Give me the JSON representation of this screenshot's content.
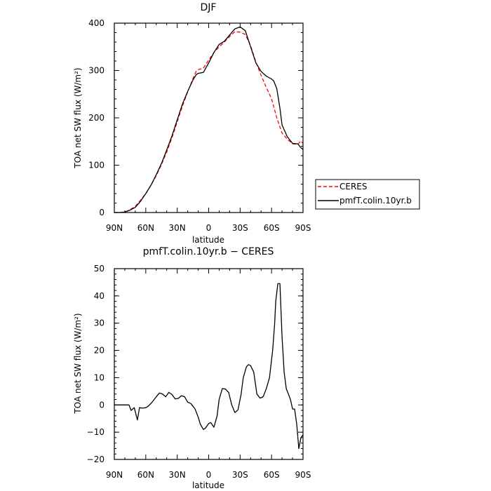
{
  "chart_data": [
    {
      "type": "line",
      "title": "DJF",
      "xlabel": "latitude",
      "ylabel": "TOA net SW flux (W/m²)",
      "xlim": [
        90,
        -90
      ],
      "ylim": [
        0,
        400
      ],
      "x_ticks": [
        90,
        60,
        30,
        0,
        -30,
        -60,
        -90
      ],
      "x_tick_labels": [
        "90N",
        "60N",
        "30N",
        "0",
        "30S",
        "60S",
        "90S"
      ],
      "y_ticks": [
        0,
        100,
        200,
        300,
        400
      ],
      "y_tick_labels": [
        "0",
        "100",
        "200",
        "300",
        "400"
      ],
      "legend_position": "right",
      "series": [
        {
          "name": "CERES",
          "color": "#ff0000",
          "dash": "dashed",
          "x": [
            90,
            85,
            80,
            75,
            70,
            65,
            60,
            55,
            50,
            45,
            40,
            35,
            30,
            25,
            20,
            15,
            12,
            10,
            5,
            0,
            -5,
            -10,
            -15,
            -20,
            -25,
            -30,
            -35,
            -40,
            -45,
            -50,
            -55,
            -60,
            -65,
            -70,
            -75,
            -80,
            -85,
            -88,
            -90
          ],
          "y": [
            0,
            0,
            1,
            6,
            13,
            26,
            40,
            58,
            78,
            102,
            128,
            158,
            192,
            225,
            255,
            283,
            298,
            302,
            305,
            322,
            338,
            350,
            360,
            372,
            382,
            381,
            376,
            352,
            318,
            290,
            264,
            240,
            200,
            168,
            155,
            145,
            144,
            151,
            146
          ]
        },
        {
          "name": "pmfT.colin.10yr.b",
          "color": "#000000",
          "dash": "solid",
          "x": [
            90,
            85,
            80,
            75,
            70,
            65,
            60,
            55,
            50,
            45,
            40,
            35,
            30,
            25,
            20,
            15,
            12,
            10,
            5,
            0,
            -5,
            -10,
            -15,
            -20,
            -25,
            -30,
            -35,
            -40,
            -45,
            -50,
            -55,
            -60,
            -62,
            -65,
            -68,
            -70,
            -75,
            -80,
            -85,
            -88,
            -90
          ],
          "y": [
            0,
            0,
            1,
            5,
            11,
            24,
            40,
            58,
            80,
            104,
            132,
            162,
            196,
            229,
            256,
            280,
            291,
            294,
            296,
            316,
            338,
            355,
            362,
            375,
            388,
            392,
            384,
            350,
            316,
            298,
            288,
            282,
            278,
            262,
            220,
            185,
            160,
            146,
            145,
            137,
            133
          ]
        }
      ]
    },
    {
      "type": "line",
      "title": "pmfT.colin.10yr.b − CERES",
      "xlabel": "latitude",
      "ylabel": "TOA net SW flux (W/m²)",
      "xlim": [
        90,
        -90
      ],
      "ylim": [
        -20,
        50
      ],
      "x_ticks": [
        90,
        60,
        30,
        0,
        -30,
        -60,
        -90
      ],
      "x_tick_labels": [
        "90N",
        "60N",
        "30N",
        "0",
        "30S",
        "60S",
        "90S"
      ],
      "y_ticks": [
        -20,
        -10,
        0,
        10,
        20,
        30,
        40,
        50
      ],
      "y_tick_labels": [
        "−20",
        "−10",
        "0",
        "10",
        "20",
        "30",
        "40",
        "50"
      ],
      "series": [
        {
          "color": "#000000",
          "dash": "solid",
          "x": [
            90,
            85,
            80,
            76,
            74,
            71,
            68,
            66,
            63,
            60,
            58,
            54,
            50,
            47,
            44,
            41,
            38,
            35,
            32,
            29,
            26,
            23,
            20,
            17,
            13,
            10,
            8,
            5,
            3,
            0,
            -2,
            -5,
            -8,
            -10,
            -13,
            -16,
            -19,
            -22,
            -25,
            -28,
            -31,
            -33,
            -36,
            -38,
            -40,
            -43,
            -46,
            -49,
            -52,
            -55,
            -58,
            -61,
            -63,
            -64,
            -66,
            -68,
            -70,
            -72,
            -74,
            -76,
            -78,
            -80,
            -82,
            -84,
            -86,
            -88,
            -90
          ],
          "y": [
            0,
            0,
            0,
            0,
            -2,
            -1,
            -5.5,
            -1,
            -1.2,
            -1,
            -0.6,
            1,
            3,
            4.4,
            4,
            3,
            4.6,
            3.8,
            2.2,
            2.4,
            3.4,
            3,
            1,
            0.5,
            -1.5,
            -4.5,
            -7,
            -9,
            -8.5,
            -6.8,
            -6.5,
            -8.2,
            -4,
            2,
            6,
            5.8,
            4.6,
            0,
            -2.8,
            -1.8,
            4,
            10,
            14,
            14.8,
            14.4,
            12,
            4,
            2.5,
            3,
            6,
            10,
            20,
            30,
            38,
            44.5,
            44.5,
            25,
            12,
            6,
            4,
            2,
            -1.5,
            -1.5,
            -7,
            -16,
            -12,
            -11
          ]
        }
      ]
    }
  ]
}
